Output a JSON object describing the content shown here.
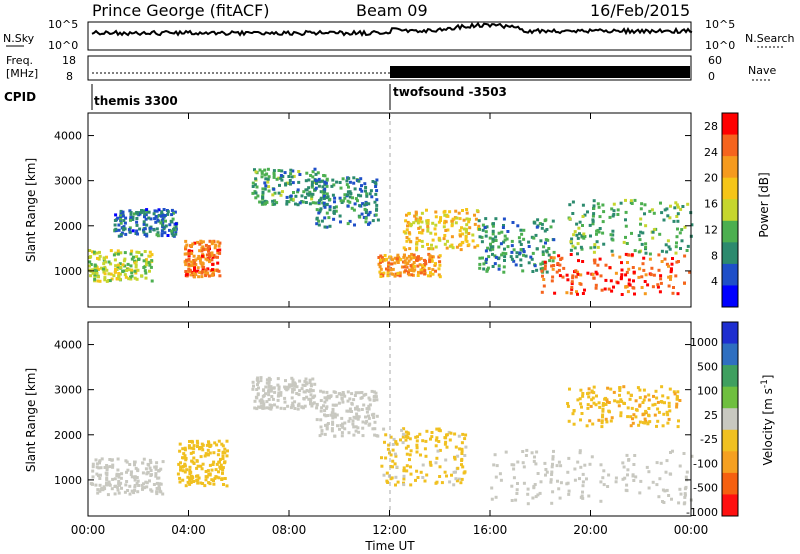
{
  "header": {
    "site": "Prince George (fitACF)",
    "beam": "Beam 09",
    "date": "16/Feb/2015"
  },
  "strips": {
    "nsky_label": "N.Sky",
    "nsearch_label": "N.Search",
    "noise_ticks_left": [
      "10^5",
      "10^0"
    ],
    "noise_ticks_right": [
      "10^5",
      "10^0"
    ],
    "freq_label_1": "Freq.",
    "freq_label_2": "[MHz]",
    "freq_ticks": [
      "18",
      "8"
    ],
    "nave_label": "Nave",
    "nave_ticks": [
      "60",
      "0"
    ],
    "cpid_label": "CPID",
    "cpid_1": "themis 3300",
    "cpid_2": "twofsound -3503"
  },
  "colors": {
    "power": [
      "#0000ff",
      "#1f4fc8",
      "#2c8a6e",
      "#4caf50",
      "#c6d62e",
      "#f5c518",
      "#f59a1e",
      "#f5641e",
      "#ff0000"
    ],
    "velocity": [
      "#1f2fd0",
      "#2f6fc0",
      "#3f9f5f",
      "#6fbf3f",
      "#c8c8c0",
      "#f0c020",
      "#f5a020",
      "#f56010",
      "#ff1010"
    ]
  },
  "chart_data": [
    {
      "type": "heatmap",
      "title": "Power",
      "xlabel": "Time UT",
      "ylabel": "Slant Range [km]",
      "x_ticks": [
        "00:00",
        "04:00",
        "08:00",
        "12:00",
        "16:00",
        "20:00",
        "00:00"
      ],
      "y_ticks": [
        "1000",
        "2000",
        "3000",
        "4000"
      ],
      "ylim": [
        200,
        4500
      ],
      "colorbar_label": "Power [dB]",
      "colorbar_ticks": [
        "4",
        "8",
        "12",
        "16",
        "20",
        "24",
        "28"
      ],
      "colorbar_range": [
        0,
        30
      ],
      "regions": [
        {
          "t": [
            0.0,
            2.5
          ],
          "r": [
            800,
            1500
          ],
          "v": 15
        },
        {
          "t": [
            1.0,
            3.5
          ],
          "r": [
            1800,
            2400
          ],
          "v": 7
        },
        {
          "t": [
            3.8,
            5.2
          ],
          "r": [
            900,
            1700
          ],
          "v": 24
        },
        {
          "t": [
            6.5,
            9.5
          ],
          "r": [
            2500,
            3300
          ],
          "v": 10
        },
        {
          "t": [
            9.0,
            11.5
          ],
          "r": [
            2000,
            3100
          ],
          "v": 8
        },
        {
          "t": [
            11.5,
            14.0
          ],
          "r": [
            900,
            1400
          ],
          "v": 22
        },
        {
          "t": [
            12.5,
            15.5
          ],
          "r": [
            1500,
            2400
          ],
          "v": 18
        },
        {
          "t": [
            15.5,
            18.5
          ],
          "r": [
            1000,
            2200
          ],
          "v": 9
        },
        {
          "t": [
            18.0,
            24.0
          ],
          "r": [
            500,
            1400
          ],
          "v": 26
        },
        {
          "t": [
            19.0,
            24.0
          ],
          "r": [
            1400,
            2600
          ],
          "v": 11
        }
      ]
    },
    {
      "type": "heatmap",
      "title": "Velocity",
      "xlabel": "Time UT",
      "ylabel": "Slant Range [km]",
      "x_ticks": [
        "00:00",
        "04:00",
        "08:00",
        "12:00",
        "16:00",
        "20:00",
        "00:00"
      ],
      "y_ticks": [
        "1000",
        "2000",
        "3000",
        "4000"
      ],
      "ylim": [
        200,
        4500
      ],
      "colorbar_label": "Velocity [m s^-1]",
      "colorbar_ticks": [
        "1000",
        "500",
        "100",
        "25",
        "-25",
        "-100",
        "-500",
        "-1000"
      ],
      "colorbar_range": [
        -1000,
        1000
      ],
      "regions": [
        {
          "t": [
            0.0,
            3.0
          ],
          "r": [
            700,
            1500
          ],
          "v": 0
        },
        {
          "t": [
            3.5,
            5.5
          ],
          "r": [
            900,
            1900
          ],
          "v": -200
        },
        {
          "t": [
            6.5,
            9.0
          ],
          "r": [
            2600,
            3300
          ],
          "v": 0
        },
        {
          "t": [
            9.0,
            11.5
          ],
          "r": [
            2000,
            3000
          ],
          "v": 0
        },
        {
          "t": [
            11.5,
            15.0
          ],
          "r": [
            900,
            2200
          ],
          "v": -150
        },
        {
          "t": [
            16.0,
            24.0
          ],
          "r": [
            500,
            1700
          ],
          "v": 0
        },
        {
          "t": [
            19.0,
            23.5
          ],
          "r": [
            2200,
            3100
          ],
          "v": -300
        }
      ]
    }
  ]
}
